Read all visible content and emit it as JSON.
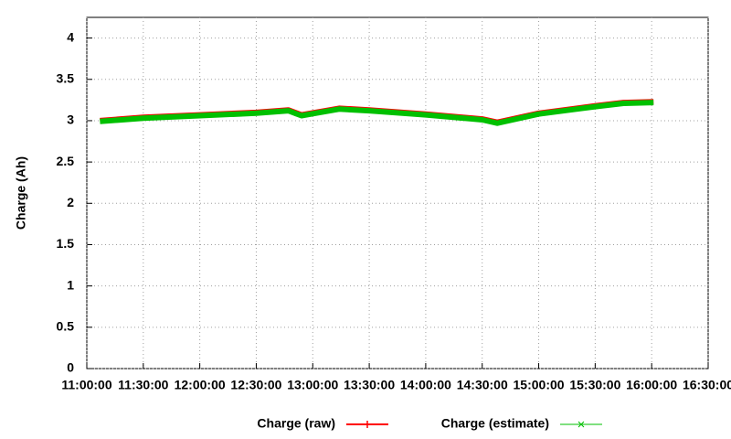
{
  "chart_data": {
    "type": "line",
    "y_label": "Charge (Ah)",
    "x": [
      "11:07:00",
      "11:30:00",
      "12:00:00",
      "12:30:00",
      "12:47:00",
      "12:54:00",
      "13:14:00",
      "13:30:00",
      "14:00:00",
      "14:30:00",
      "14:38:00",
      "15:00:00",
      "15:30:00",
      "15:45:00",
      "16:01:00"
    ],
    "series": [
      {
        "name": "Charge (raw)",
        "color": "#ff0000",
        "values": [
          3.0,
          3.04,
          3.07,
          3.1,
          3.13,
          3.07,
          3.15,
          3.13,
          3.08,
          3.02,
          2.98,
          3.09,
          3.18,
          3.22,
          3.23
        ]
      },
      {
        "name": "Charge (estimate)",
        "color": "#00c000",
        "values": [
          2.99,
          3.03,
          3.06,
          3.09,
          3.12,
          3.06,
          3.14,
          3.12,
          3.07,
          3.01,
          2.97,
          3.08,
          3.17,
          3.21,
          3.22
        ]
      }
    ],
    "xlim": [
      "11:00:00",
      "16:30:00"
    ],
    "xticks": [
      "11:00:00",
      "11:30:00",
      "12:00:00",
      "12:30:00",
      "13:00:00",
      "13:30:00",
      "14:00:00",
      "14:30:00",
      "15:00:00",
      "15:30:00",
      "16:00:00",
      "16:30:00"
    ],
    "ylim": [
      0,
      4.25
    ],
    "yticks": [
      0,
      0.5,
      1,
      1.5,
      2,
      2.5,
      3,
      3.5,
      4
    ],
    "grid": true,
    "legend": "bottom"
  }
}
